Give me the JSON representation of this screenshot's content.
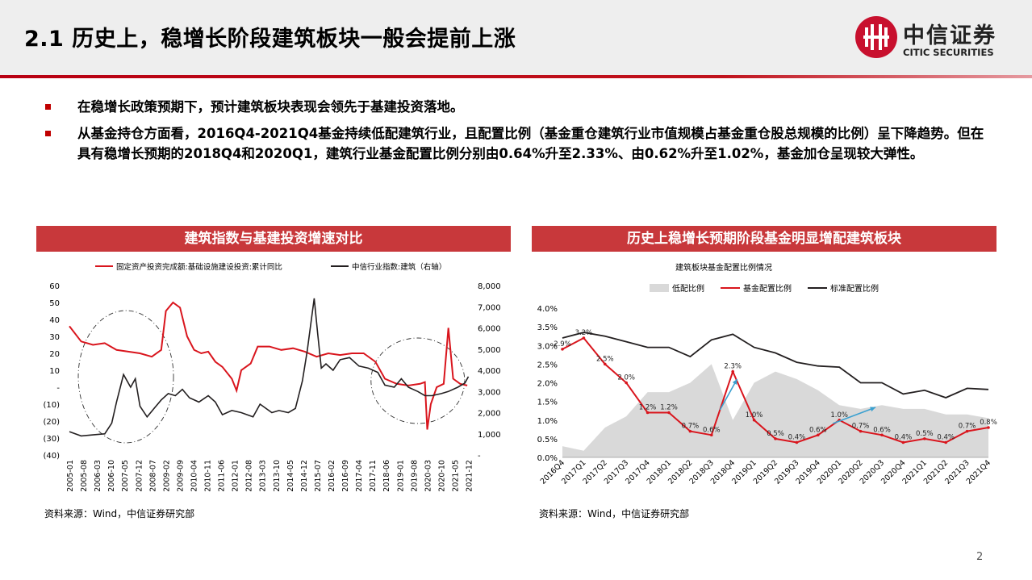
{
  "title": "2.1 历史上，稳增长阶段建筑板块一般会提前上涨",
  "logo": {
    "cn": "中信证券",
    "en": "CITIC SECURITIES"
  },
  "bullets": [
    "在稳增长政策预期下，预计建筑板块表现会领先于基建投资落地。",
    "从基金持仓方面看，2016Q4-2021Q4基金持续低配建筑行业，且配置比例（基金重仓建筑行业市值规模占基金重仓股总规模的比例）呈下降趋势。但在具有稳增长预期的2018Q4和2020Q1，建筑行业基金配置比例分别由0.64%升至2.33%、由0.62%升至1.02%，基金加仓呈现较大弹性。"
  ],
  "left_panel": {
    "header": "建筑指数与基建投资增速对比",
    "source": "资料来源：Wind，中信证券研究部"
  },
  "right_panel": {
    "header": "历史上稳增长预期阶段基金明显增配建筑板块",
    "source": "资料来源：Wind，中信证券研究部"
  },
  "page_number": "2",
  "colors": {
    "red": "#d9151d",
    "black": "#231f20",
    "gray_area": "#d9d9d9",
    "header_bg": "#c8383b"
  },
  "chart_data": [
    {
      "type": "line",
      "title": "",
      "legend": [
        "固定资产投资完成额:基础设施建设投资:累计同比",
        "中信行业指数:建筑（右轴）"
      ],
      "legend_position": "top",
      "yticks_left": [
        "60",
        "50",
        "40",
        "30",
        "20",
        "10",
        "-",
        "(10)",
        "(20)",
        "(30)",
        "(40)"
      ],
      "ylim_left": [
        -40,
        60
      ],
      "yticks_right": [
        "8,000",
        "7,000",
        "6,000",
        "5,000",
        "4,000",
        "3,000",
        "2,000",
        "1,000",
        "-"
      ],
      "ylim_right": [
        0,
        8000
      ],
      "xticks": [
        "2005-01",
        "2005-08",
        "2006-03",
        "2006-10",
        "2007-05",
        "2007-12",
        "2008-07",
        "2009-02",
        "2009-09",
        "2010-04",
        "2010-11",
        "2011-06",
        "2012-01",
        "2012-08",
        "2013-03",
        "2013-10",
        "2014-05",
        "2014-12",
        "2015-07",
        "2016-02",
        "2016-09",
        "2017-04",
        "2017-11",
        "2018-06",
        "2019-01",
        "2019-08",
        "2020-03",
        "2020-10",
        "2021-05",
        "2021-12"
      ],
      "series": [
        {
          "name": "固定资产投资完成额:基础设施建设投资:累计同比",
          "axis": "left",
          "color": "#d9151d",
          "x": [
            2005.0,
            2005.5,
            2006.0,
            2006.5,
            2007.0,
            2007.5,
            2008.0,
            2008.5,
            2008.9,
            2009.1,
            2009.4,
            2009.7,
            2010.0,
            2010.3,
            2010.6,
            2010.9,
            2011.2,
            2011.5,
            2011.9,
            2012.1,
            2012.3,
            2012.7,
            2013.0,
            2013.5,
            2014.0,
            2014.5,
            2015.0,
            2015.5,
            2016.0,
            2016.5,
            2017.0,
            2017.5,
            2018.0,
            2018.4,
            2018.9,
            2019.4,
            2019.9,
            2020.1,
            2020.2,
            2020.35,
            2020.6,
            2020.9,
            2021.1,
            2021.3,
            2021.6,
            2021.9
          ],
          "values": [
            36,
            27,
            25,
            26,
            22,
            21,
            20,
            18,
            22,
            45,
            50,
            47,
            30,
            22,
            20,
            21,
            15,
            12,
            5,
            -2,
            10,
            14,
            24,
            24,
            22,
            23,
            21,
            18,
            20,
            19,
            20,
            20,
            15,
            5,
            2,
            1,
            2,
            3,
            -25,
            -10,
            0,
            2,
            35,
            5,
            2,
            1
          ]
        },
        {
          "name": "中信行业指数:建筑（右轴）",
          "axis": "right",
          "color": "#231f20",
          "x": [
            2005.0,
            2005.5,
            2006.0,
            2006.5,
            2006.8,
            2007.0,
            2007.3,
            2007.6,
            2007.8,
            2008.0,
            2008.3,
            2008.6,
            2008.9,
            2009.2,
            2009.5,
            2009.8,
            2010.1,
            2010.5,
            2010.9,
            2011.2,
            2011.5,
            2011.9,
            2012.3,
            2012.8,
            2013.1,
            2013.6,
            2013.9,
            2014.3,
            2014.6,
            2014.9,
            2015.1,
            2015.4,
            2015.55,
            2015.7,
            2015.9,
            2016.2,
            2016.5,
            2016.9,
            2017.3,
            2017.7,
            2018.1,
            2018.4,
            2018.8,
            2019.1,
            2019.4,
            2019.8,
            2020.1,
            2020.4,
            2020.8,
            2021.1,
            2021.5,
            2021.8,
            2021.95
          ],
          "values": [
            1100,
            900,
            950,
            1000,
            1500,
            2500,
            3800,
            3200,
            3600,
            2300,
            1800,
            2200,
            2600,
            2900,
            2800,
            3100,
            2700,
            2500,
            2800,
            2500,
            1900,
            2100,
            2000,
            1800,
            2400,
            2000,
            2100,
            2000,
            2200,
            3500,
            4900,
            7400,
            5700,
            4100,
            4300,
            4000,
            4500,
            4600,
            4200,
            4100,
            3900,
            3300,
            3200,
            3600,
            3200,
            3000,
            2800,
            2800,
            2900,
            3000,
            3200,
            3400,
            3700
          ]
        }
      ],
      "annotations": [
        "dashed ellipse around 2006-2008",
        "dashed ellipse around 2018-2020"
      ]
    },
    {
      "type": "line",
      "title": "建筑板块基金配置比例情况",
      "legend": [
        "低配比例",
        "基金配置比例",
        "标准配置比例"
      ],
      "legend_position": "top",
      "yticks": [
        "4.0%",
        "3.5%",
        "3.0%",
        "2.5%",
        "2.0%",
        "1.5%",
        "1.0%",
        "0.5%",
        "0.0%"
      ],
      "ylim": [
        0,
        4.0
      ],
      "categories": [
        "2016Q4",
        "2017Q1",
        "2017Q2",
        "2017Q3",
        "2017Q4",
        "2018Q1",
        "2018Q2",
        "2018Q3",
        "2018Q4",
        "2019Q1",
        "2019Q2",
        "2019Q3",
        "2019Q4",
        "2020Q1",
        "2020Q2",
        "2020Q3",
        "2020Q4",
        "2021Q1",
        "2021Q2",
        "2021Q3",
        "2021Q4"
      ],
      "series": [
        {
          "name": "低配比例",
          "type": "area",
          "color": "#d9d9d9",
          "values": [
            0.3,
            0.18,
            0.8,
            1.1,
            1.75,
            1.75,
            2.0,
            2.5,
            1.0,
            2.0,
            2.3,
            2.1,
            1.8,
            1.4,
            1.3,
            1.4,
            1.3,
            1.3,
            1.15,
            1.15,
            1.05
          ]
        },
        {
          "name": "基金配置比例",
          "type": "line",
          "color": "#d9151d",
          "values": [
            2.9,
            3.2,
            2.5,
            2.0,
            1.2,
            1.2,
            0.7,
            0.6,
            2.3,
            1.0,
            0.5,
            0.4,
            0.6,
            1.0,
            0.7,
            0.6,
            0.4,
            0.5,
            0.4,
            0.7,
            0.8
          ],
          "labels": [
            "2.9%",
            "3.2%",
            "2.5%",
            "2.0%",
            "1.2%",
            "1.2%",
            "0.7%",
            "0.6%",
            "2.3%",
            "1.0%",
            "0.5%",
            "0.4%",
            "0.6%",
            "1.0%",
            "0.7%",
            "0.6%",
            "0.4%",
            "0.5%",
            "0.4%",
            "0.7%",
            "0.8%"
          ]
        },
        {
          "name": "标准配置比例",
          "type": "line",
          "color": "#231f20",
          "values": [
            3.2,
            3.35,
            3.25,
            3.1,
            2.95,
            2.95,
            2.7,
            3.15,
            3.3,
            2.95,
            2.8,
            2.55,
            2.45,
            2.42,
            2.0,
            2.0,
            1.7,
            1.8,
            1.6,
            1.85,
            1.82
          ]
        }
      ],
      "annotations": [
        "blue arrow before 2018Q4",
        "blue arrow before 2020Q1"
      ]
    }
  ]
}
